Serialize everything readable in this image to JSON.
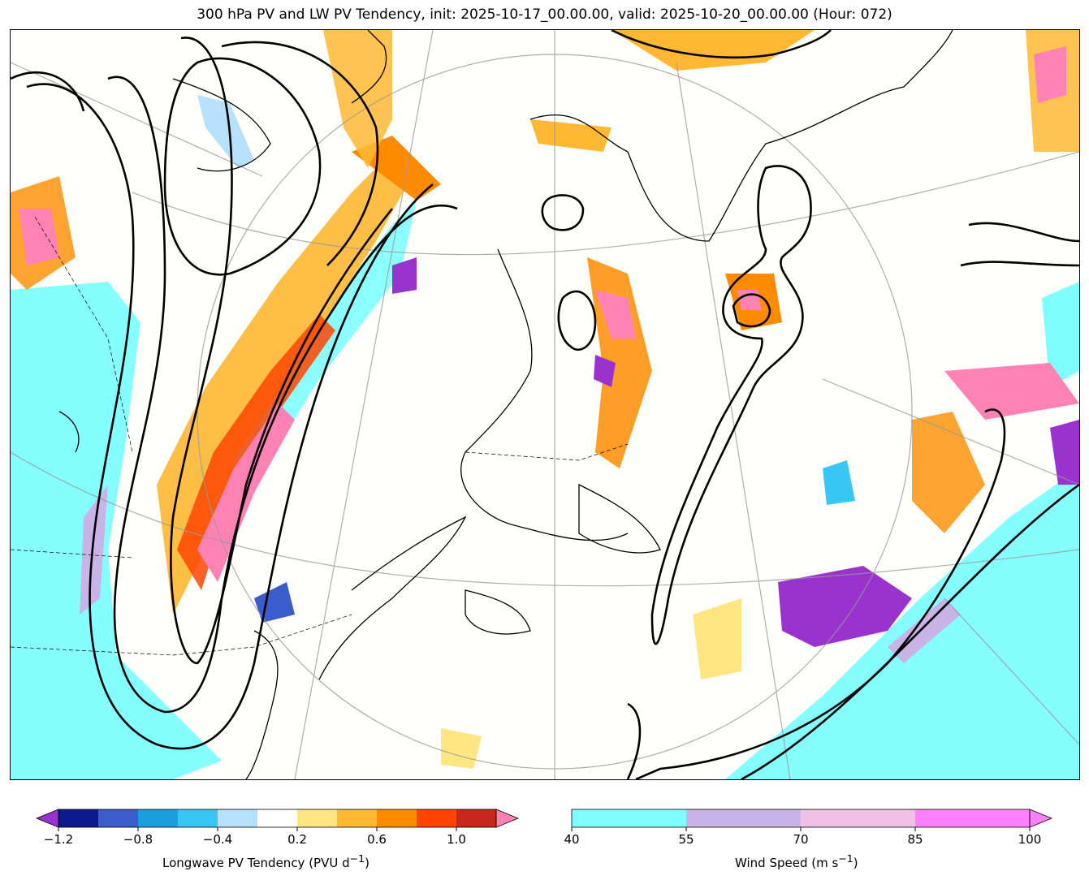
{
  "title": "300 hPa PV and LW PV Tendency, init: 2025-10-17_00.00.00, valid: 2025-10-20_00.00.00 (Hour: 072)",
  "colorbars": {
    "pv_tendency": {
      "label": "Longwave PV Tendency (PVU d",
      "label_sup": "−1",
      "label_end": ")",
      "ticks": [
        "−1.2",
        "−0.8",
        "−0.4",
        "0.2",
        "0.6",
        "1.0"
      ],
      "levels": [
        -1.2,
        -1.0,
        -0.8,
        -0.6,
        -0.4,
        -0.2,
        0.2,
        0.4,
        0.6,
        0.8,
        1.0,
        1.2
      ],
      "colors": [
        "#0d1a8f",
        "#3a5ccc",
        "#1a9ee0",
        "#38c6f4",
        "#b6e0fb",
        "#ffffff",
        "#ffe680",
        "#ffb833",
        "#ff8c00",
        "#ff4500",
        "#c8281a"
      ],
      "under_color": "#9a32cd",
      "over_color": "#ff82b4"
    },
    "wind_speed": {
      "label": "Wind Speed (m s",
      "label_sup": "−1",
      "label_end": ")",
      "ticks": [
        "40",
        "55",
        "70",
        "85",
        "100"
      ],
      "levels": [
        40,
        55,
        70,
        85,
        100
      ],
      "colors": [
        "#80ffff",
        "#c8b4e6",
        "#f0c0e6",
        "#ff80ff"
      ]
    }
  }
}
